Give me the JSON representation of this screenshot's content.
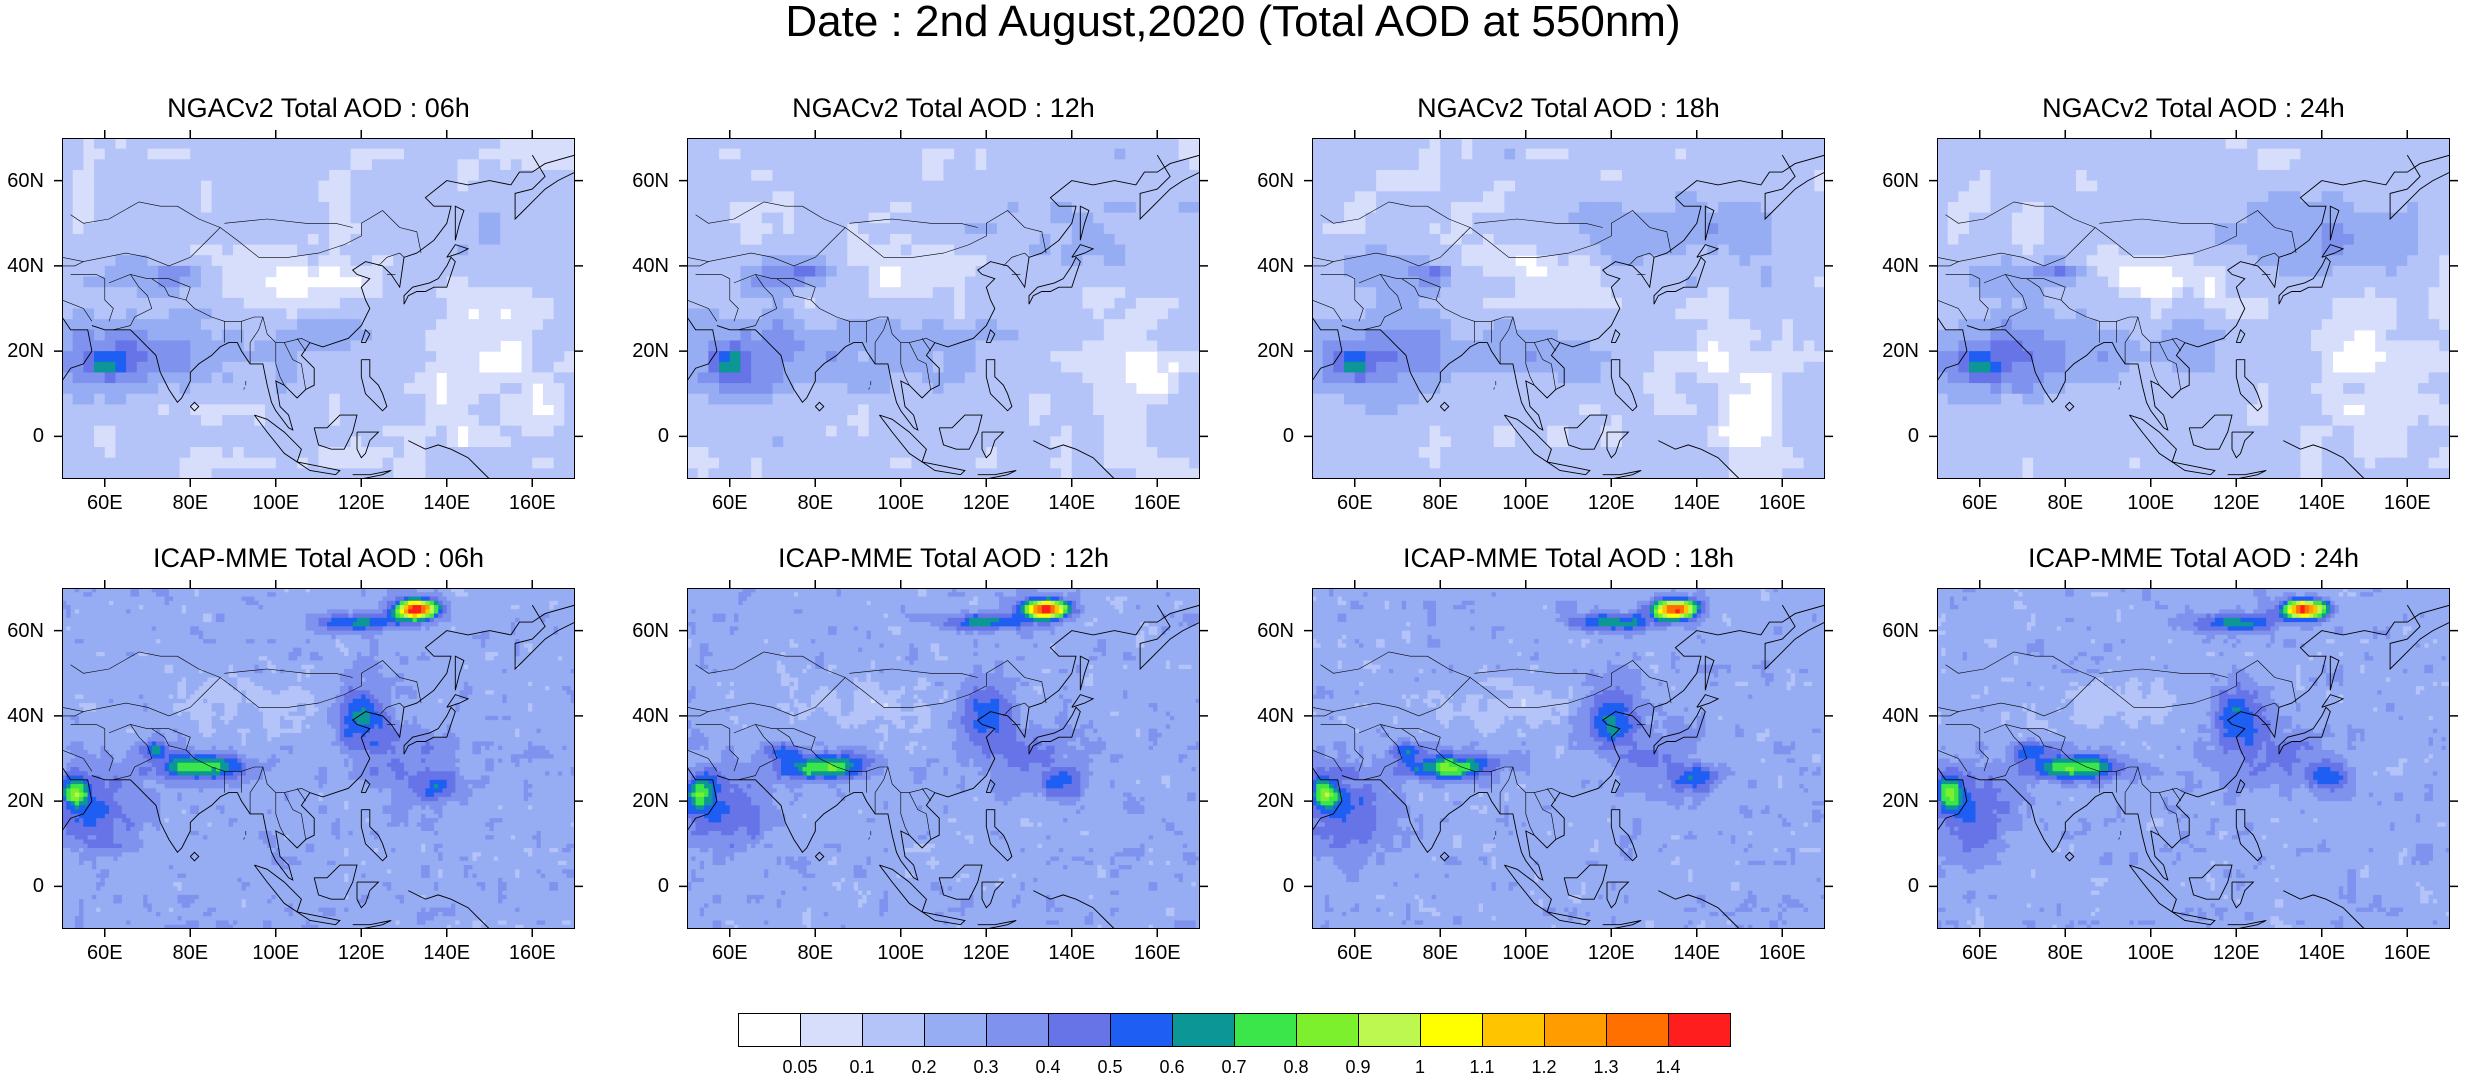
{
  "main_title": "Date : 2nd August,2020 (Total AOD at 550nm)",
  "panels": [
    {
      "title": "NGACv2 Total AOD : 06h",
      "model": "NGACv2",
      "hour": "06h"
    },
    {
      "title": "NGACv2 Total AOD : 12h",
      "model": "NGACv2",
      "hour": "12h"
    },
    {
      "title": "NGACv2 Total AOD : 18h",
      "model": "NGACv2",
      "hour": "18h"
    },
    {
      "title": "NGACv2 Total AOD : 24h",
      "model": "NGACv2",
      "hour": "24h"
    },
    {
      "title": "ICAP-MME Total AOD : 06h",
      "model": "ICAP-MME",
      "hour": "06h"
    },
    {
      "title": "ICAP-MME Total AOD : 12h",
      "model": "ICAP-MME",
      "hour": "12h"
    },
    {
      "title": "ICAP-MME Total AOD : 18h",
      "model": "ICAP-MME",
      "hour": "18h"
    },
    {
      "title": "ICAP-MME Total AOD : 24h",
      "model": "ICAP-MME",
      "hour": "24h"
    }
  ],
  "axes": {
    "lon_range": [
      50,
      170
    ],
    "lat_range": [
      -10,
      70
    ],
    "lon_ticks": [
      "60E",
      "80E",
      "100E",
      "120E",
      "140E",
      "160E"
    ],
    "lon_tick_values": [
      60,
      80,
      100,
      120,
      140,
      160
    ],
    "lat_ticks": [
      "60N",
      "40N",
      "20N",
      "0"
    ],
    "lat_tick_values": [
      60,
      40,
      20,
      0
    ]
  },
  "legend": {
    "labels": [
      "0.05",
      "0.1",
      "0.2",
      "0.3",
      "0.4",
      "0.5",
      "0.6",
      "0.7",
      "0.8",
      "0.9",
      "1",
      "1.1",
      "1.2",
      "1.3",
      "1.4"
    ],
    "colors": [
      "#ffffff",
      "#d6defc",
      "#b4c3f8",
      "#96acf3",
      "#7e92ee",
      "#6774e8",
      "#1f5ef2",
      "#0d9696",
      "#3ae64a",
      "#7cf02c",
      "#bdf850",
      "#ffff00",
      "#ffc400",
      "#ff9c00",
      "#ff7000",
      "#ff1e1e"
    ]
  }
}
